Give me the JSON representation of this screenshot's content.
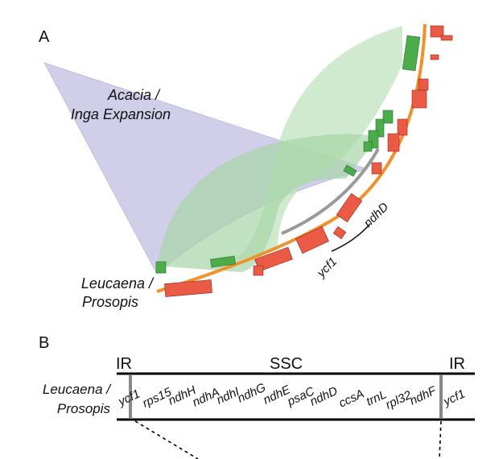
{
  "panel_a": {
    "letter": "A",
    "expansion_label_line1": "Acacia /",
    "expansion_label_line2": "Inga Expansion",
    "group_label_line1": "Leucaena /",
    "group_label_line2": "Prosopis",
    "gene_label_1": "ndhD",
    "gene_label_2": "ycf1"
  },
  "panel_b": {
    "letter": "B",
    "ir_left": "IR",
    "ssc": "SSC",
    "ir_right": "IR",
    "row_label_line1": "Leucaena /",
    "row_label_line2": "Prosopis",
    "genes": [
      "ycf1",
      "rps15",
      "ndhH",
      "ndhA",
      "ndhI",
      "ndhG",
      "ndhE",
      "psaC",
      "ndhD",
      "ccsA",
      "trnL",
      "rpl32",
      "ndhF",
      "ycf1"
    ]
  },
  "colors": {
    "orange_arc": "#f0922c",
    "grey_arc": "#9a9a9a",
    "green_block": "#4aad4a",
    "green_ribbon": "#bfe3bf",
    "red_block": "#ea5a45",
    "purple_ribbon": "#c9c6e6"
  }
}
